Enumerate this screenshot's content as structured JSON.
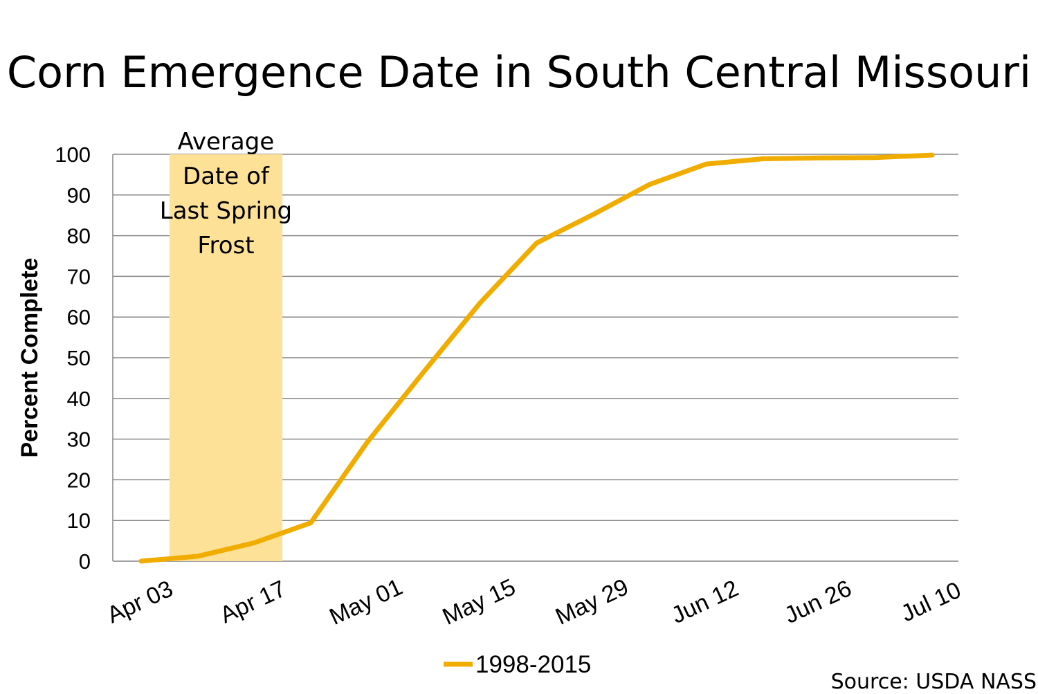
{
  "chart_data": {
    "type": "line",
    "title": "Corn Emergence Date in South Central Missouri",
    "xlabel": "",
    "ylabel": "Percent Complete",
    "ylim": [
      0,
      100
    ],
    "yticks": [
      "0",
      "10",
      "20",
      "30",
      "40",
      "50",
      "60",
      "70",
      "80",
      "90",
      "100"
    ],
    "grid": true,
    "x_start_date": "Apr 03",
    "x_unit": "days since Apr 03",
    "xlim": [
      -3,
      101
    ],
    "xtick_labels": [
      "Apr 03",
      "Apr 17",
      "May 01",
      "May 15",
      "May 29",
      "Jun 12",
      "Jun 26",
      "Jul 10"
    ],
    "xtick_days": [
      0,
      14,
      28,
      42,
      56,
      70,
      84,
      98
    ],
    "x": [
      0,
      7,
      14,
      21,
      28,
      35,
      42,
      49,
      56,
      63,
      70,
      77,
      84,
      91,
      98
    ],
    "x_dates": [
      "Apr 03",
      "Apr 10",
      "Apr 17",
      "Apr 24",
      "May 01",
      "May 08",
      "May 15",
      "May 22",
      "May 29",
      "Jun 05",
      "Jun 12",
      "Jun 19",
      "Jun 26",
      "Jul 03",
      "Jul 10"
    ],
    "series": [
      {
        "name": "1998-2015",
        "color": "#F0AD00",
        "values": [
          0,
          1.2,
          4.5,
          9.4,
          29.2,
          46.5,
          63.5,
          78.2,
          85.2,
          92.6,
          97.6,
          98.9,
          99.1,
          99.2,
          99.8
        ]
      }
    ],
    "legend": {
      "placement": "bottom-center",
      "entries": [
        "1998-2015"
      ]
    },
    "annotation": {
      "type": "band",
      "label_lines": [
        "Average",
        "Date of",
        "Last Spring",
        "Frost"
      ],
      "start_day": 3.5,
      "end_day": 17.5,
      "color": "#FCE196"
    },
    "source": "Source: USDA NASS"
  }
}
